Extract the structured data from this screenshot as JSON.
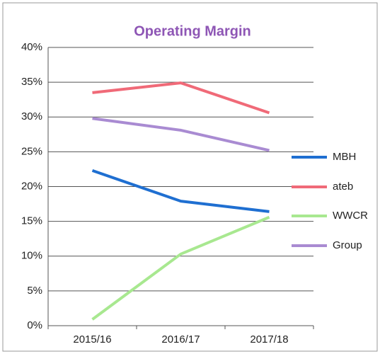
{
  "chart_data": {
    "type": "line",
    "title": "Operating Margin",
    "categories": [
      "2015/16",
      "2016/17",
      "2017/18"
    ],
    "series": [
      {
        "name": "MBH",
        "color": "#1f6fd1",
        "values": [
          22.3,
          17.9,
          16.4
        ]
      },
      {
        "name": "ateb",
        "color": "#f06a78",
        "values": [
          33.5,
          34.9,
          30.6
        ]
      },
      {
        "name": "WWCR",
        "color": "#a8e890",
        "values": [
          0.9,
          10.3,
          15.6
        ]
      },
      {
        "name": "Group",
        "color": "#a98bd2",
        "values": [
          29.8,
          28.1,
          25.2
        ]
      }
    ],
    "ylim": [
      0,
      40
    ],
    "yticks": [
      {
        "value": 0,
        "label": "0%"
      },
      {
        "value": 5,
        "label": "5%"
      },
      {
        "value": 10,
        "label": "10%"
      },
      {
        "value": 15,
        "label": "15%"
      },
      {
        "value": 20,
        "label": "20%"
      },
      {
        "value": 25,
        "label": "25%"
      },
      {
        "value": 30,
        "label": "30%"
      },
      {
        "value": 35,
        "label": "35%"
      },
      {
        "value": 40,
        "label": "40%"
      }
    ],
    "grid": true,
    "legend": "right"
  }
}
